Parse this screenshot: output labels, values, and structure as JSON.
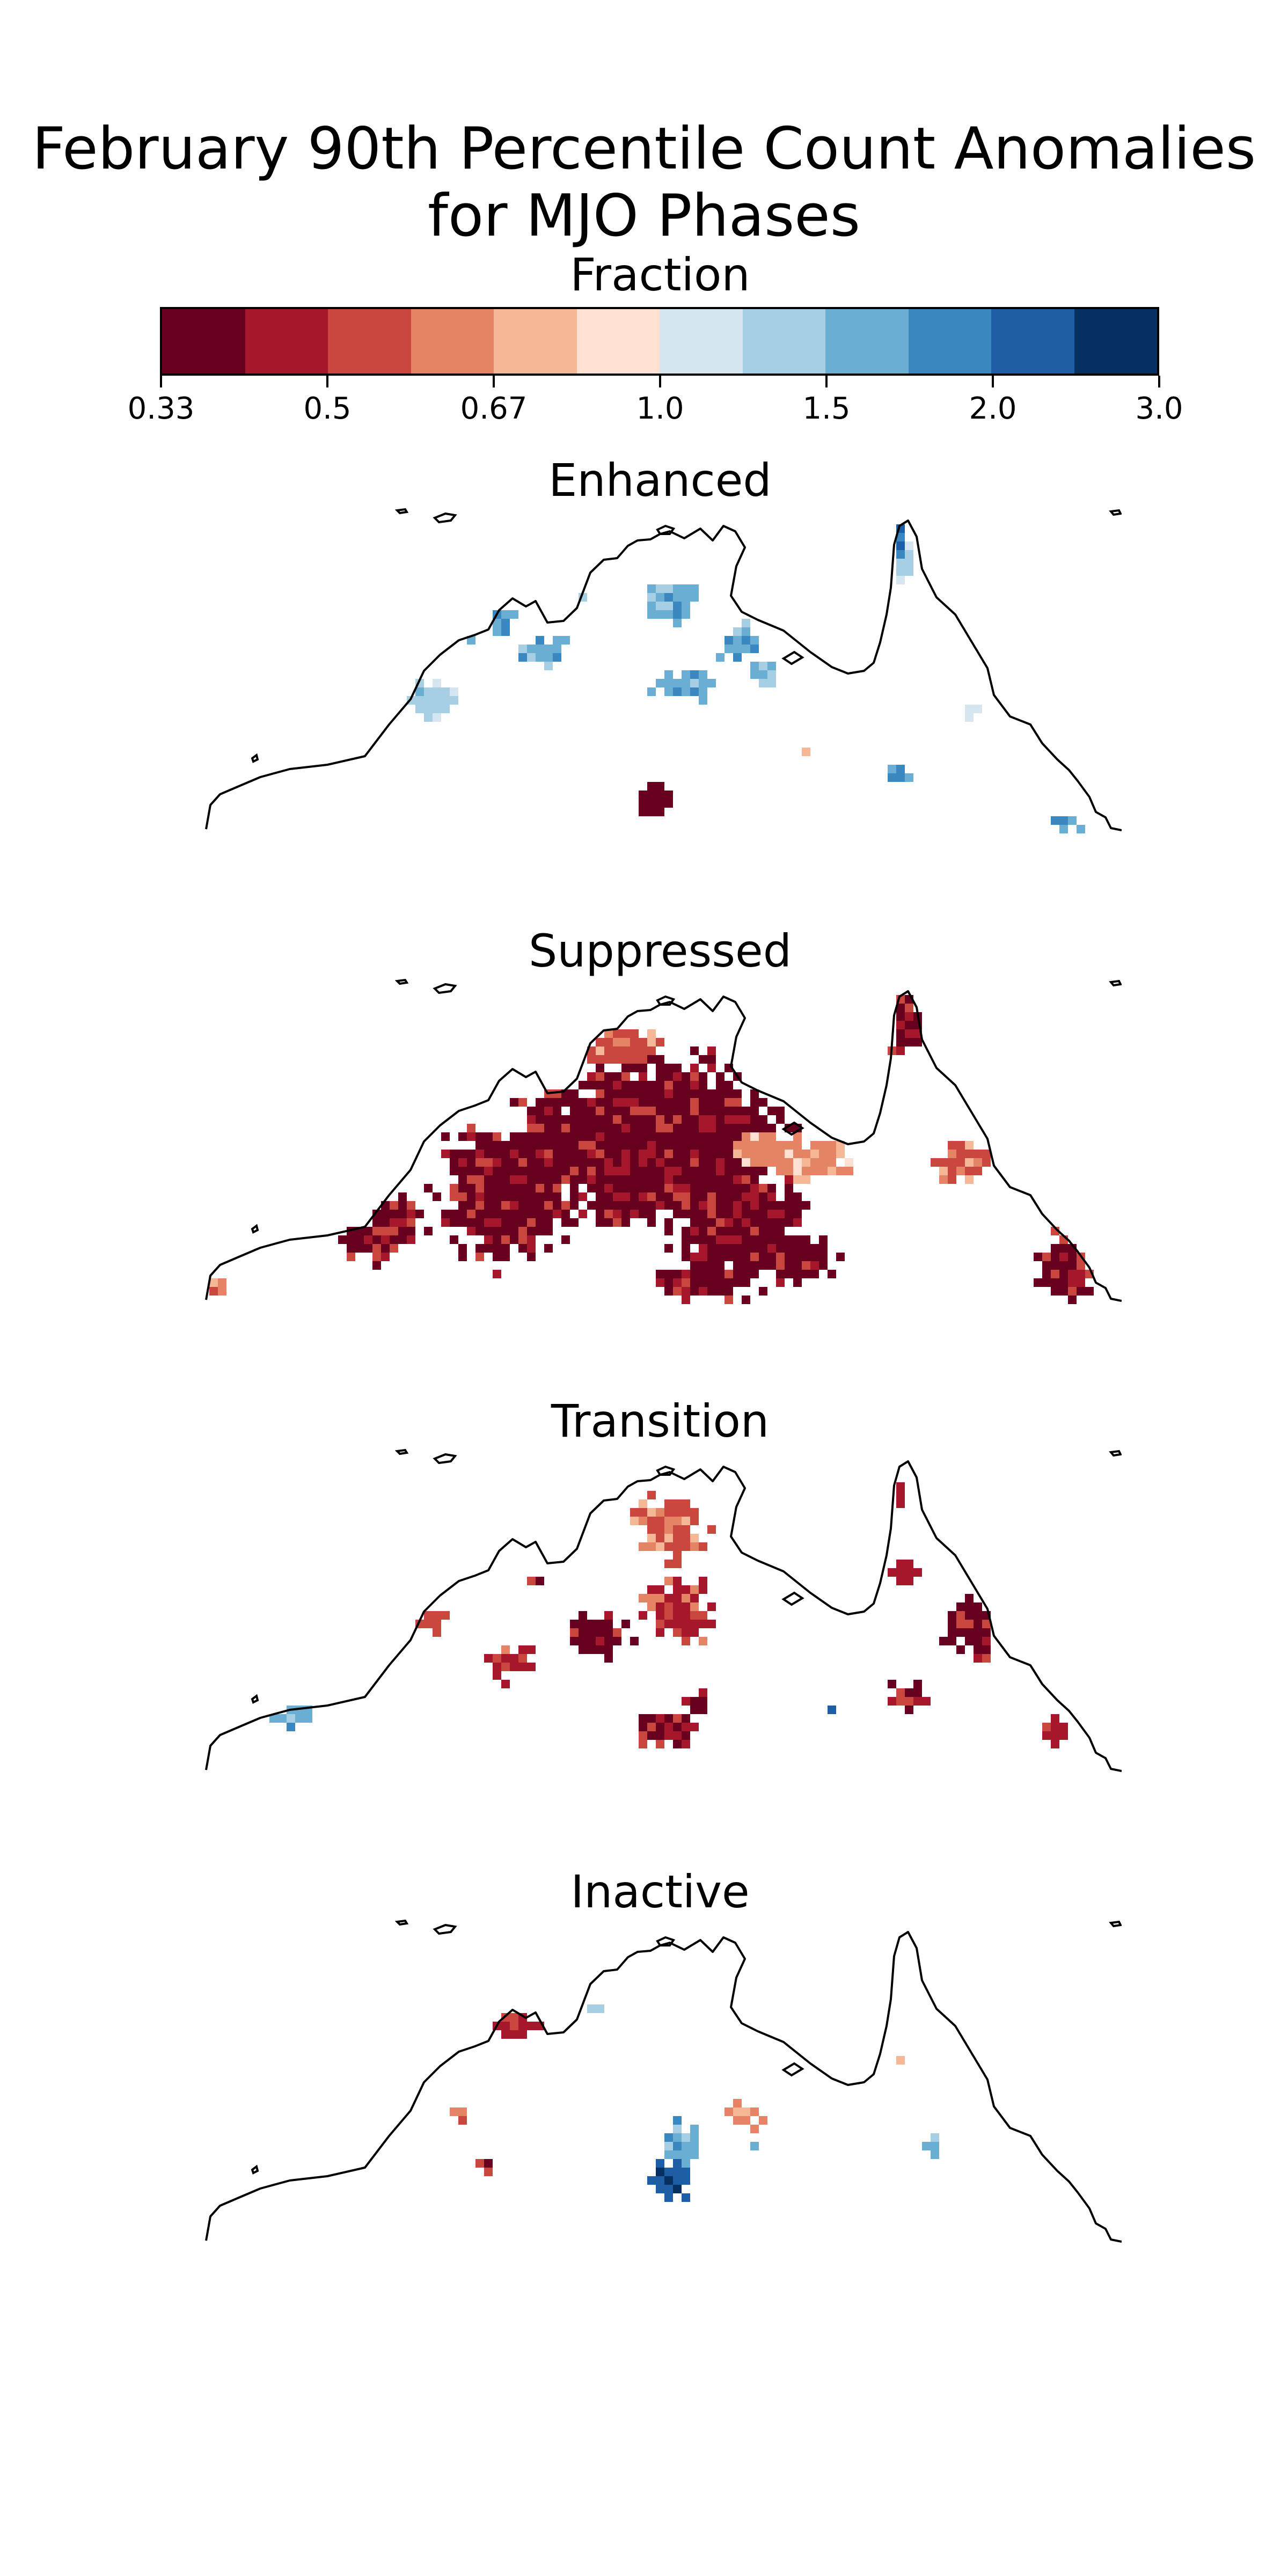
{
  "figure": {
    "title_line1": "February 90th Percentile Count Anomalies",
    "title_line2": "for MJO Phases"
  },
  "colorbar": {
    "label": "Fraction",
    "tick_labels": [
      "0.33",
      "0.5",
      "0.67",
      "1.0",
      "1.5",
      "2.0",
      "3.0"
    ],
    "colors": [
      "#67001f",
      "#a6172b",
      "#c9473f",
      "#e48465",
      "#f5b796",
      "#fde0d1",
      "#d6e6f0",
      "#a7cfe4",
      "#6baed3",
      "#3b88c1",
      "#1d5ea4",
      "#053061"
    ]
  },
  "panels": [
    {
      "title": "Enhanced"
    },
    {
      "title": "Suppressed"
    },
    {
      "title": "Transition"
    },
    {
      "title": "Inactive"
    }
  ],
  "map": {
    "region": "Northern Australia",
    "coastline_color": "#000000",
    "background": "#ffffff"
  }
}
